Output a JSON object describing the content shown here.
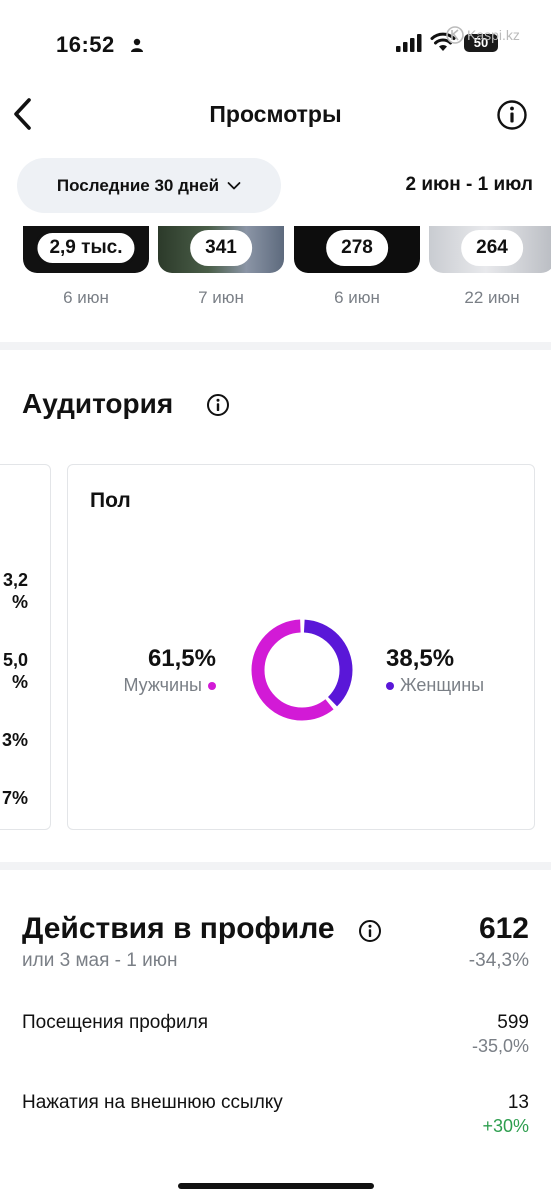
{
  "status": {
    "time": "16:52",
    "battery": "50",
    "watermark": "Kaspi.kz"
  },
  "nav": {
    "title": "Просмотры"
  },
  "filter": {
    "period": "Последние 30 дней",
    "range": "2 июн - 1 июл"
  },
  "thumbnails": [
    {
      "count": "2,9 тыс.",
      "date": "6 июн"
    },
    {
      "count": "341",
      "date": "7 июн"
    },
    {
      "count": "278",
      "date": "6 июн"
    },
    {
      "count": "264",
      "date": "22 июн"
    }
  ],
  "audience": {
    "title": "Аудитория",
    "left_card_values": [
      "3,2\n%",
      "5,0\n%",
      "3%",
      "7%"
    ],
    "gender": {
      "title": "Пол",
      "male_pct": "61,5%",
      "male_label": "Мужчины",
      "male_share": 61.5,
      "female_pct": "38,5%",
      "female_label": "Женщины",
      "female_share": 38.5,
      "colors": {
        "male": "#d21ad6",
        "female": "#5a17d8"
      }
    }
  },
  "profile_actions": {
    "title": "Действия в профиле",
    "total": "612",
    "compare_label": "или 3 мая - 1 июн",
    "change": "-34,3%",
    "rows": [
      {
        "label": "Посещения профиля",
        "value": "599",
        "change": "-35,0%",
        "change_color": "#7a7f86"
      },
      {
        "label": "Нажатия на внешнюю ссылку",
        "value": "13",
        "change": "+30%",
        "change_color": "#2e9e4f"
      }
    ]
  }
}
